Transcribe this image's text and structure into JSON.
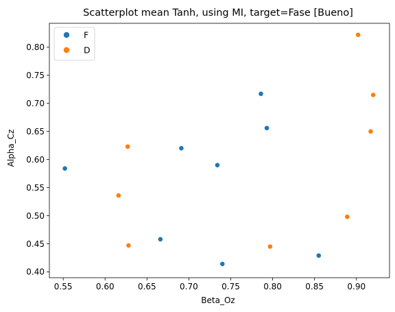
{
  "chart_data": {
    "type": "scatter",
    "title": "Scatterplot mean Tanh, using MI, target=Fase [Bueno]",
    "xlabel": "Beta_Oz",
    "ylabel": "Alpha_Cz",
    "xlim": [
      0.5335,
      0.9395
    ],
    "ylim": [
      0.3895,
      0.8425
    ],
    "xticks": [
      "0.55",
      "0.60",
      "0.65",
      "0.70",
      "0.75",
      "0.80",
      "0.85",
      "0.90"
    ],
    "yticks": [
      "0.40",
      "0.45",
      "0.50",
      "0.55",
      "0.60",
      "0.65",
      "0.70",
      "0.75",
      "0.80"
    ],
    "grid": false,
    "legend_position": "top-left",
    "series": [
      {
        "name": "F",
        "color": "#1f77b4",
        "points": [
          {
            "x": 0.552,
            "y": 0.584
          },
          {
            "x": 0.666,
            "y": 0.458
          },
          {
            "x": 0.691,
            "y": 0.62
          },
          {
            "x": 0.734,
            "y": 0.59
          },
          {
            "x": 0.74,
            "y": 0.414
          },
          {
            "x": 0.786,
            "y": 0.717
          },
          {
            "x": 0.793,
            "y": 0.656
          },
          {
            "x": 0.855,
            "y": 0.429
          }
        ]
      },
      {
        "name": "D",
        "color": "#ff7f0e",
        "points": [
          {
            "x": 0.616,
            "y": 0.536
          },
          {
            "x": 0.627,
            "y": 0.623
          },
          {
            "x": 0.628,
            "y": 0.447
          },
          {
            "x": 0.797,
            "y": 0.445
          },
          {
            "x": 0.889,
            "y": 0.498
          },
          {
            "x": 0.902,
            "y": 0.822
          },
          {
            "x": 0.917,
            "y": 0.65
          },
          {
            "x": 0.92,
            "y": 0.715
          }
        ]
      }
    ]
  }
}
